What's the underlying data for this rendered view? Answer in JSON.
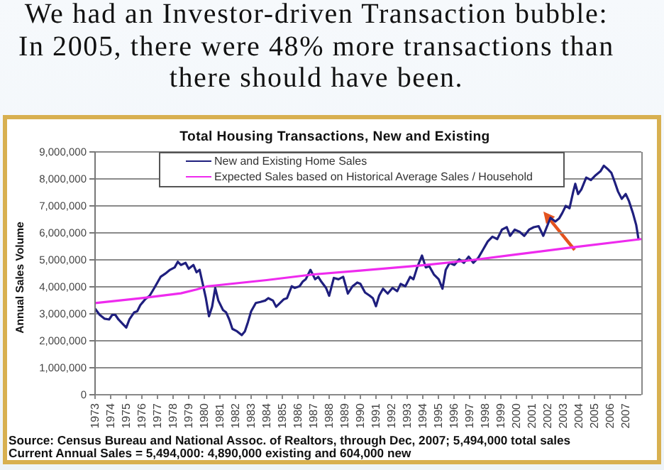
{
  "chart_data": {
    "type": "line",
    "title": "We had an Investor-driven Transaction bubble:\nIn 2005, there were 48% more transactions than\nthere should have been.",
    "subtitle": "Total Housing Transactions, New and Existing",
    "ylabel": "Annual Sales Volume",
    "annotations": [
      "Source: Census Bureau and National Assoc. of Realtors, through Dec, 2007; 5,494,000 total sales",
      "Current Annual Sales = 5,494,000: 4,890,000 existing and 604,000 new"
    ],
    "xlim": [
      1973,
      2008
    ],
    "xticks": [
      1973,
      1974,
      1975,
      1976,
      1977,
      1978,
      1979,
      1980,
      1981,
      1982,
      1983,
      1984,
      1985,
      1986,
      1987,
      1988,
      1989,
      1990,
      1991,
      1992,
      1993,
      1994,
      1995,
      1996,
      1997,
      1998,
      1999,
      2000,
      2001,
      2002,
      2003,
      2004,
      2005,
      2006,
      2007
    ],
    "ylim": [
      0,
      9000000
    ],
    "yticks": [
      0,
      {
        "value": 1000000,
        "label": "1,000,000"
      },
      {
        "value": 2000000,
        "label": "2,000,000"
      },
      {
        "value": 3000000,
        "label": "3,000,000"
      },
      {
        "value": 4000000,
        "label": "4,000,000"
      },
      {
        "value": 5000000,
        "label": "5,000,000"
      },
      {
        "value": 6000000,
        "label": "6,000,000"
      },
      {
        "value": 7000000,
        "label": "7,000,000"
      },
      {
        "value": 8000000,
        "label": "8,000,000"
      },
      {
        "value": 9000000,
        "label": "9,000,000"
      }
    ],
    "grid": "y",
    "legend": "top",
    "series": [
      {
        "name": "New and Existing Home Sales",
        "color": "#1f1f7e",
        "x": [
          1973.0,
          1973.3,
          1973.6,
          1973.9,
          1974.1,
          1974.3,
          1974.5,
          1974.8,
          1975.0,
          1975.2,
          1975.5,
          1975.7,
          1975.9,
          1976.2,
          1976.5,
          1976.8,
          1977.2,
          1977.5,
          1977.8,
          1978.1,
          1978.3,
          1978.5,
          1978.8,
          1979.0,
          1979.3,
          1979.5,
          1979.7,
          1979.9,
          1980.1,
          1980.3,
          1980.5,
          1980.7,
          1980.9,
          1981.2,
          1981.4,
          1981.6,
          1981.8,
          1982.1,
          1982.4,
          1982.6,
          1982.8,
          1983.0,
          1983.3,
          1983.6,
          1983.9,
          1984.1,
          1984.4,
          1984.6,
          1984.8,
          1985.1,
          1985.3,
          1985.6,
          1985.8,
          1986.1,
          1986.3,
          1986.5,
          1986.8,
          1987.1,
          1987.3,
          1987.5,
          1987.8,
          1988.0,
          1988.3,
          1988.6,
          1988.9,
          1989.2,
          1989.5,
          1989.8,
          1990.0,
          1990.3,
          1990.6,
          1990.8,
          1991.0,
          1991.2,
          1991.45,
          1991.75,
          1992.06,
          1992.36,
          1992.58,
          1992.88,
          1993.19,
          1993.4,
          1993.64,
          1993.95,
          1994.19,
          1994.41,
          1994.71,
          1995.02,
          1995.26,
          1995.47,
          1995.72,
          1996.02,
          1996.33,
          1996.63,
          1996.94,
          1997.24,
          1997.55,
          1997.85,
          1998.16,
          1998.46,
          1998.77,
          1999.07,
          1999.38,
          1999.59,
          1999.89,
          2000.2,
          2000.5,
          2000.81,
          2001.11,
          2001.42,
          2001.72,
          2001.94,
          2002.18,
          2002.49,
          2002.73,
          2002.94,
          2003.16,
          2003.4,
          2003.64,
          2003.77,
          2003.95,
          2004.16,
          2004.47,
          2004.77,
          2005.08,
          2005.38,
          2005.6,
          2005.84,
          2006.08,
          2006.3,
          2006.51,
          2006.75,
          2007.0,
          2007.21,
          2007.46,
          2007.67,
          2007.82
        ],
        "values": [
          3190000,
          2960000,
          2820000,
          2790000,
          2960000,
          2960000,
          2790000,
          2610000,
          2490000,
          2790000,
          3050000,
          3090000,
          3320000,
          3530000,
          3670000,
          3960000,
          4370000,
          4490000,
          4630000,
          4720000,
          4930000,
          4810000,
          4890000,
          4670000,
          4810000,
          4540000,
          4630000,
          4110000,
          3580000,
          2910000,
          3260000,
          3960000,
          3490000,
          3140000,
          3050000,
          2790000,
          2440000,
          2350000,
          2210000,
          2350000,
          2700000,
          3090000,
          3400000,
          3440000,
          3490000,
          3580000,
          3490000,
          3260000,
          3370000,
          3540000,
          3580000,
          4020000,
          3960000,
          4020000,
          4190000,
          4280000,
          4630000,
          4280000,
          4370000,
          4190000,
          3960000,
          3670000,
          4330000,
          4280000,
          4370000,
          3750000,
          4020000,
          4160000,
          4110000,
          3790000,
          3670000,
          3580000,
          3280000,
          3670000,
          3930000,
          3750000,
          3960000,
          3840000,
          4110000,
          4020000,
          4370000,
          4280000,
          4720000,
          5160000,
          4720000,
          4770000,
          4460000,
          4280000,
          3930000,
          4630000,
          4890000,
          4810000,
          5020000,
          4890000,
          5120000,
          4890000,
          5070000,
          5370000,
          5680000,
          5860000,
          5770000,
          6120000,
          6210000,
          5890000,
          6120000,
          6040000,
          5890000,
          6120000,
          6210000,
          6250000,
          5890000,
          6210000,
          6560000,
          6420000,
          6530000,
          6740000,
          7000000,
          6910000,
          7530000,
          7820000,
          7440000,
          7610000,
          8050000,
          7960000,
          8140000,
          8280000,
          8490000,
          8370000,
          8230000,
          7880000,
          7530000,
          7260000,
          7440000,
          7180000,
          6740000,
          6300000,
          5770000
        ]
      },
      {
        "name": "Expected Sales based on Historical Average Sales / Household",
        "color": "#ee2aee",
        "x": [
          1973,
          1976,
          1978.5,
          1979.5,
          1980.2,
          1984,
          1987,
          1990,
          1994,
          1997,
          2000,
          2003.7,
          2008
        ],
        "values": [
          3400000,
          3580000,
          3760000,
          3900000,
          4020000,
          4250000,
          4460000,
          4600000,
          4800000,
          4980000,
          5200000,
          5470000,
          5770000
        ]
      }
    ]
  }
}
